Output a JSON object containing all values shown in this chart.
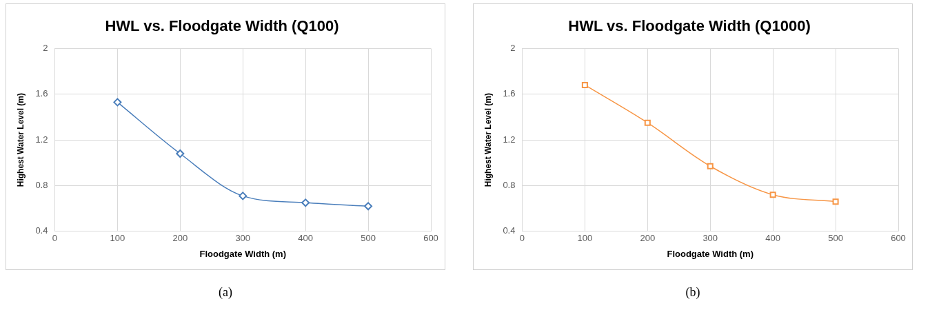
{
  "chart_data": [
    {
      "type": "line",
      "title": "HWL vs. Floodgate Width (Q100)",
      "xlabel": "Floodgate Width (m)",
      "ylabel": "Highest Water Level (m)",
      "x": [
        100,
        200,
        300,
        400,
        500
      ],
      "series": [
        {
          "color": "#4a7ebb",
          "values": [
            1.53,
            1.08,
            0.71,
            0.65,
            0.62
          ]
        }
      ],
      "xlim": [
        0,
        600
      ],
      "xticks": [
        0,
        100,
        200,
        300,
        400,
        500,
        600
      ],
      "ylim": [
        0.4,
        2
      ],
      "yticks": [
        0.4,
        0.8,
        1.2,
        1.6,
        2
      ],
      "grid": true,
      "marker": "diamond",
      "annotations": [
        "(a)"
      ]
    },
    {
      "type": "line",
      "title": "HWL vs. Floodgate Width (Q1000)",
      "xlabel": "Floodgate Width (m)",
      "ylabel": "Highest Water Level (m)",
      "x": [
        100,
        200,
        300,
        400,
        500
      ],
      "series": [
        {
          "color": "#f79646",
          "values": [
            1.68,
            1.35,
            0.97,
            0.72,
            0.66
          ]
        }
      ],
      "xlim": [
        0,
        600
      ],
      "xticks": [
        0,
        100,
        200,
        300,
        400,
        500,
        600
      ],
      "ylim": [
        0.4,
        2
      ],
      "yticks": [
        0.4,
        0.8,
        1.2,
        1.6,
        2
      ],
      "grid": true,
      "marker": "square",
      "annotations": [
        "(b)"
      ]
    }
  ]
}
